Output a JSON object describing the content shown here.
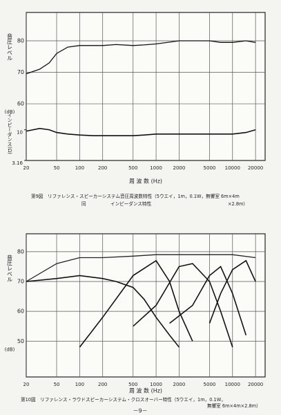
{
  "chart_data": [
    {
      "type": "line",
      "x_scale": "log",
      "y2_scale": "log",
      "xlim": [
        20,
        26700
      ],
      "xticks": [
        20,
        50,
        100,
        200,
        500,
        1000,
        2000,
        5000,
        10000,
        20000
      ],
      "ylim": [
        42,
        89
      ],
      "yticks": [
        60,
        70,
        80
      ],
      "y2lim": [
        3.16,
        813
      ],
      "y2ticks": [
        3.16,
        10
      ],
      "y_label": "音圧レベル",
      "y_unit": "(dB)",
      "y2_label": "インピーダンス(Ω)",
      "x_label": "周 波 数 (Hz)",
      "grid": true,
      "caption": [
        "第9図　リファレンス・スピーカーシステム音圧周波数特性（5ウエイ，1m，0.1W，無響室 6m×4m",
        "×2.8m）",
        "同",
        "インピーダンス特性"
      ],
      "series": [
        {
          "color": "#111",
          "x": [
            20,
            30,
            40,
            50,
            70,
            100,
            150,
            200,
            300,
            500,
            700,
            1000,
            2000,
            3000,
            5000,
            7000,
            10000,
            15000,
            20000
          ],
          "values": [
            69.5,
            71,
            73,
            76,
            78,
            78.5,
            78.5,
            78.5,
            78.8,
            78.5,
            78.7,
            79,
            80,
            80,
            80,
            79.5,
            79.5,
            80,
            79.5
          ]
        },
        {
          "color": "#111",
          "axis": "y2",
          "x": [
            20,
            30,
            40,
            50,
            70,
            100,
            150,
            200,
            300,
            500,
            700,
            1000,
            2000,
            3000,
            5000,
            7000,
            10000,
            15000,
            20000
          ],
          "values": [
            9.5,
            10.5,
            10,
            9,
            8.5,
            8.2,
            8,
            8,
            8,
            8,
            8.2,
            8.5,
            8.5,
            8.5,
            8.5,
            8.5,
            8.5,
            9,
            10
          ]
        }
      ]
    },
    {
      "type": "line",
      "x_scale": "log",
      "xlim": [
        20,
        26700
      ],
      "xticks": [
        20,
        50,
        100,
        200,
        500,
        1000,
        2000,
        5000,
        10000,
        20000
      ],
      "ylim": [
        38,
        86
      ],
      "yticks": [
        50,
        60,
        70,
        80
      ],
      "y_label": "音圧レベル",
      "y_unit": "(dB)",
      "x_label": "周 波 数 (Hz)",
      "grid": true,
      "caption": [
        "第10図　リファレンス・ラウドスピーカーシステム・クロスオーバー特性（5ウエイ，1m，0.1W，",
        "無響室 6m×4m×2.8m）"
      ],
      "series": [
        {
          "color": "#222",
          "x": [
            20,
            50,
            100,
            200,
            500,
            1000,
            2000,
            5000,
            10000,
            20000
          ],
          "values": [
            70,
            76,
            78,
            78,
            78.5,
            79,
            79,
            79,
            79,
            78
          ]
        },
        {
          "color": "#111",
          "x": [
            20,
            50,
            100,
            200,
            300,
            500,
            700,
            1000,
            1500,
            2000
          ],
          "values": [
            70,
            71,
            72,
            71,
            70,
            68,
            64,
            58,
            52,
            48
          ]
        },
        {
          "color": "#111",
          "x": [
            100,
            200,
            500,
            1000,
            1500,
            2000,
            3000
          ],
          "values": [
            48,
            58,
            72,
            77,
            70,
            60,
            50
          ]
        },
        {
          "color": "#111",
          "x": [
            500,
            1000,
            2000,
            3000,
            5000,
            7000,
            10000
          ],
          "values": [
            55,
            62,
            75,
            76,
            70,
            60,
            48
          ]
        },
        {
          "color": "#111",
          "x": [
            1500,
            3000,
            5000,
            7000,
            10000,
            15000
          ],
          "values": [
            56,
            62,
            72,
            75,
            66,
            52
          ]
        },
        {
          "color": "#111",
          "x": [
            5000,
            7000,
            10000,
            15000,
            20000
          ],
          "values": [
            56,
            66,
            74,
            77,
            70
          ]
        }
      ]
    }
  ],
  "page_number": "－9－"
}
